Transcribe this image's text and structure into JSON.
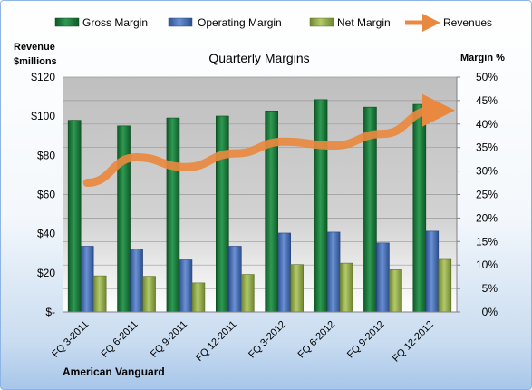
{
  "chart_data": {
    "type": "bar",
    "title": "Quarterly Margins",
    "footer_label": "American Vanguard",
    "left_axis": {
      "title_line1": "Revenue",
      "title_line2": "$millions",
      "range": [
        0,
        120
      ],
      "ticks": [
        0,
        20,
        40,
        60,
        80,
        100,
        120
      ],
      "tick_labels": [
        "$-",
        "$20",
        "$40",
        "$60",
        "$80",
        "$100",
        "$120"
      ]
    },
    "right_axis": {
      "title": "Margin %",
      "range": [
        0,
        50
      ],
      "ticks": [
        0,
        5,
        10,
        15,
        20,
        25,
        30,
        35,
        40,
        45,
        50
      ],
      "tick_labels": [
        "0%",
        "5%",
        "10%",
        "15%",
        "20%",
        "25%",
        "30%",
        "35%",
        "40%",
        "45%",
        "50%"
      ]
    },
    "categories": [
      "FQ 3-2011",
      "FQ 6-2011",
      "FQ 9-2011",
      "FQ 12-2011",
      "FQ 3-2012",
      "FQ 6-2012",
      "FQ 9-2012",
      "FQ 12-2012"
    ],
    "series": [
      {
        "name": "Gross Margin",
        "axis": "right",
        "type": "bar",
        "color": "#1e7d3e",
        "values": [
          40.8,
          39.6,
          41.3,
          41.7,
          42.8,
          45.2,
          43.6,
          44.2
        ]
      },
      {
        "name": "Operating Margin",
        "axis": "right",
        "type": "bar",
        "color": "#4a72b8",
        "values": [
          14.0,
          13.4,
          11.1,
          14.0,
          16.8,
          17.0,
          14.7,
          17.2
        ]
      },
      {
        "name": "Net Margin",
        "axis": "right",
        "type": "bar",
        "color": "#93ac4b",
        "values": [
          7.7,
          7.6,
          6.2,
          8.0,
          10.1,
          10.4,
          9.0,
          11.2
        ]
      },
      {
        "name": "Revenues",
        "axis": "left",
        "type": "line",
        "color": "#e8893f",
        "values": [
          66,
          79,
          74,
          81,
          87,
          85,
          91,
          103
        ]
      }
    ],
    "legend_position": "top",
    "grid": true
  }
}
